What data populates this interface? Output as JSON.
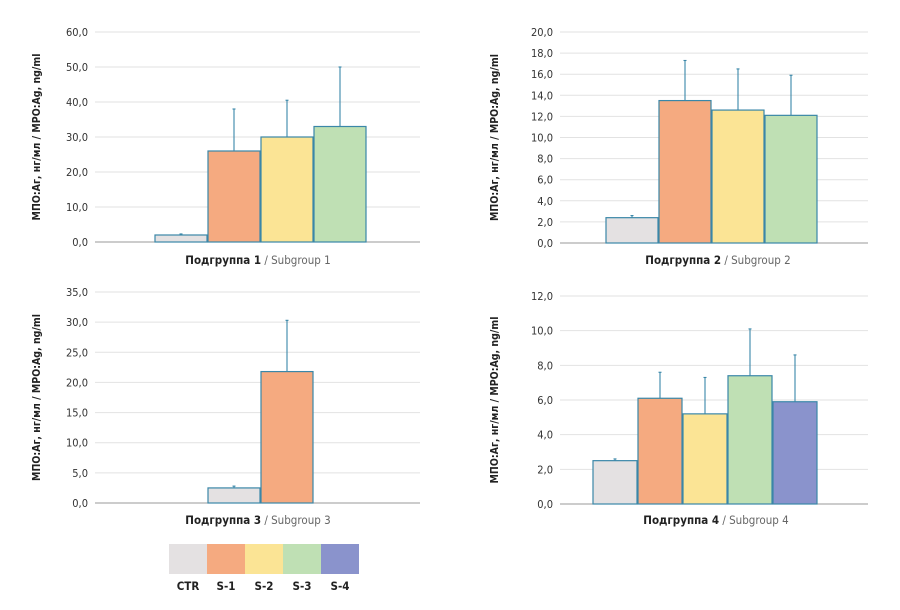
{
  "chart_data": [
    {
      "type": "bar",
      "categories": [
        "CTR",
        "S-1",
        "S-2",
        "S-3"
      ],
      "values": [
        2.0,
        26.0,
        30.0,
        33.0
      ],
      "errors": [
        0.3,
        12.0,
        10.5,
        17.0
      ],
      "ylabel": "МПО:Аг, нг/мл / MPO:Ag, ng/ml",
      "ylim": [
        0,
        60
      ],
      "yticks": [
        "0,0",
        "10,0",
        "20,0",
        "30,0",
        "40,0",
        "50,0",
        "60,0"
      ],
      "xtitle_ru": "Подгруппа 1",
      "xtitle_sep": " / ",
      "xtitle_en": "Subgroup 1",
      "grid": true
    },
    {
      "type": "bar",
      "categories": [
        "CTR",
        "S-1",
        "S-2",
        "S-3"
      ],
      "values": [
        2.4,
        13.5,
        12.6,
        12.1
      ],
      "errors": [
        0.2,
        3.8,
        3.9,
        3.8
      ],
      "ylabel": "МПО:Аг, нг/мл / MPO:Ag, ng/ml",
      "ylim": [
        0,
        20
      ],
      "yticks": [
        "0,0",
        "2,0",
        "4,0",
        "6,0",
        "8,0",
        "10,0",
        "12,0",
        "14,0",
        "16,0",
        "18,0",
        "20,0"
      ],
      "xtitle_ru": "Подгруппа 2",
      "xtitle_sep": " / ",
      "xtitle_en": "Subgroup 2",
      "grid": true
    },
    {
      "type": "bar",
      "categories": [
        "CTR",
        "S-1"
      ],
      "values": [
        2.5,
        21.8
      ],
      "errors": [
        0.3,
        8.5
      ],
      "ylabel": "МПО:Аг, нг/мл / MPO:Ag, ng/ml",
      "ylim": [
        0,
        35
      ],
      "yticks": [
        "0,0",
        "5,0",
        "10,0",
        "15,0",
        "20,0",
        "25,0",
        "30,0",
        "35,0"
      ],
      "xtitle_ru": "Подгруппа 3",
      "xtitle_sep": " / ",
      "xtitle_en": "Subgroup 3",
      "grid": true
    },
    {
      "type": "bar",
      "categories": [
        "CTR",
        "S-1",
        "S-2",
        "S-3",
        "S-4"
      ],
      "values": [
        2.5,
        6.1,
        5.2,
        7.4,
        5.9
      ],
      "errors": [
        0.1,
        1.5,
        2.1,
        2.7,
        2.7
      ],
      "ylabel": "МПО:Аг, нг/мл / MPO:Ag, ng/ml",
      "ylim": [
        0,
        12
      ],
      "yticks": [
        "0,0",
        "2,0",
        "4,0",
        "6,0",
        "8,0",
        "10,0",
        "12,0"
      ],
      "xtitle_ru": "Подгруппа 4",
      "xtitle_sep": " / ",
      "xtitle_en": "Subgroup 4",
      "grid": true
    }
  ],
  "legend": {
    "placement": "bottom",
    "items": [
      {
        "label": "CTR",
        "color": "#e4e1e2"
      },
      {
        "label": "S-1",
        "color": "#f5aa80"
      },
      {
        "label": "S-2",
        "color": "#fbe495"
      },
      {
        "label": "S-3",
        "color": "#bfe0b4"
      },
      {
        "label": "S-4",
        "color": "#8a93cc"
      }
    ]
  },
  "style": {
    "bar_stroke": "#3a87a8",
    "error_color": "#3a87a8",
    "grid_color": "#e2e2e2",
    "axis_color": "#999999"
  }
}
